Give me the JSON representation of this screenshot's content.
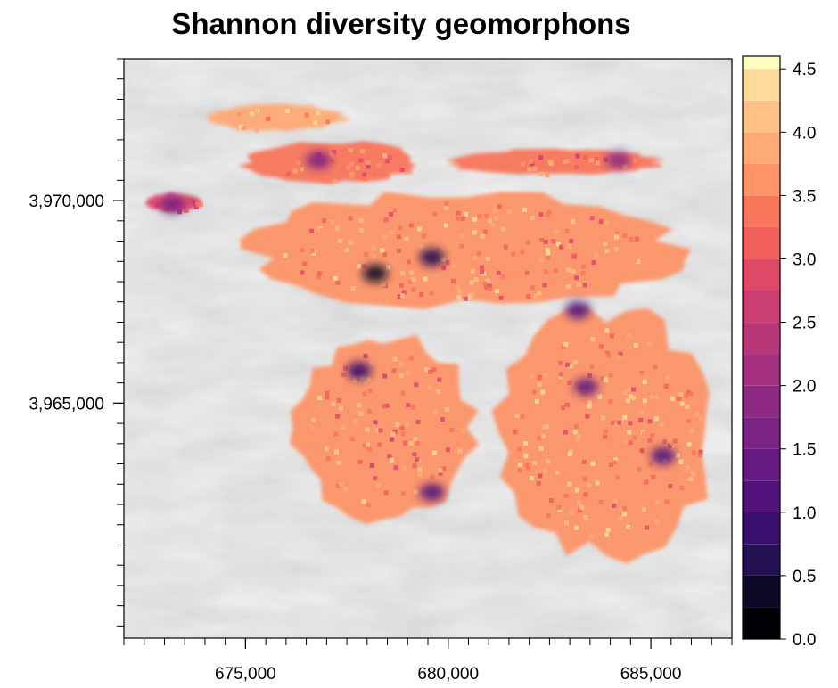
{
  "title": "Shannon diversity geomorphons",
  "colors": {
    "hillshade_bg": "#ececec",
    "axis": "#000000",
    "legend_bins": [
      "#000004",
      "#0c0826",
      "#231151",
      "#3b0f70",
      "#51127c",
      "#641a80",
      "#7a2382",
      "#8c2981",
      "#a3307e",
      "#b73779",
      "#cb3e72",
      "#de4968",
      "#f1605d",
      "#f8765c",
      "#fd9467",
      "#feaa74",
      "#fec287",
      "#fdd99a",
      "#fcfdbf"
    ]
  },
  "chart_data": {
    "type": "heatmap",
    "title": "Shannon diversity geomorphons",
    "x_axis": {
      "label": "",
      "range": [
        672000,
        687000
      ],
      "ticks": [
        675000,
        680000,
        685000
      ],
      "tick_labels": [
        "675,000",
        "680,000",
        "685,000"
      ],
      "minor_step": 500
    },
    "y_axis": {
      "label": "",
      "range": [
        3959200,
        3973500
      ],
      "ticks": [
        3965000,
        3970000
      ],
      "tick_labels": [
        "3,965,000",
        "3,970,000"
      ],
      "minor_step": 500
    },
    "legend": {
      "min": 0,
      "max": 4.6,
      "ticks": [
        0.0,
        0.5,
        1.0,
        1.5,
        2.0,
        2.5,
        3.0,
        3.5,
        4.0,
        4.5
      ],
      "tick_labels": [
        "0.0",
        "0.5",
        "1.0",
        "1.5",
        "2.0",
        "2.5",
        "3.0",
        "3.5",
        "4.0",
        "4.5"
      ],
      "bin_breaks": [
        0.0,
        0.25,
        0.5,
        0.75,
        1.0,
        1.25,
        1.5,
        1.75,
        2.0,
        2.25,
        2.5,
        2.75,
        3.0,
        3.25,
        3.5,
        3.75,
        4.0,
        4.25,
        4.5,
        4.65
      ]
    },
    "regions": [
      {
        "name": "north-strip",
        "bounds_x": [
          673900,
          677600
        ],
        "bounds_y": [
          3971700,
          3972400
        ],
        "typical_value": 3.9
      },
      {
        "name": "upper-west-band",
        "bounds_x": [
          674800,
          679400
        ],
        "bounds_y": [
          3970400,
          3971500
        ],
        "typical_value": 3.3
      },
      {
        "name": "small-west-patch",
        "bounds_x": [
          672500,
          674000
        ],
        "bounds_y": [
          3969700,
          3970200
        ],
        "typical_value": 2.8
      },
      {
        "name": "upper-east-band",
        "bounds_x": [
          679800,
          685400
        ],
        "bounds_y": [
          3970600,
          3971300
        ],
        "typical_value": 3.4
      },
      {
        "name": "central-northern-belt",
        "bounds_x": [
          674700,
          686100
        ],
        "bounds_y": [
          3967300,
          3970300
        ],
        "typical_value": 3.6
      },
      {
        "name": "southwest-arc",
        "bounds_x": [
          676000,
          680800
        ],
        "bounds_y": [
          3962000,
          3966800
        ],
        "typical_value": 3.5
      },
      {
        "name": "eastern-block",
        "bounds_x": [
          681000,
          686800
        ],
        "bounds_y": [
          3961000,
          3967500
        ],
        "typical_value": 3.7
      }
    ],
    "low_diversity_spots": [
      {
        "x": 678200,
        "y": 3968200,
        "value": 0.3
      },
      {
        "x": 679600,
        "y": 3968600,
        "value": 0.6
      },
      {
        "x": 677800,
        "y": 3965800,
        "value": 0.8
      },
      {
        "x": 679600,
        "y": 3962800,
        "value": 1.0
      },
      {
        "x": 683200,
        "y": 3967300,
        "value": 1.2
      },
      {
        "x": 683400,
        "y": 3965400,
        "value": 1.3
      },
      {
        "x": 685300,
        "y": 3963700,
        "value": 1.2
      },
      {
        "x": 676800,
        "y": 3971000,
        "value": 1.6
      },
      {
        "x": 684200,
        "y": 3971000,
        "value": 1.8
      },
      {
        "x": 673200,
        "y": 3969900,
        "value": 1.7
      }
    ]
  }
}
